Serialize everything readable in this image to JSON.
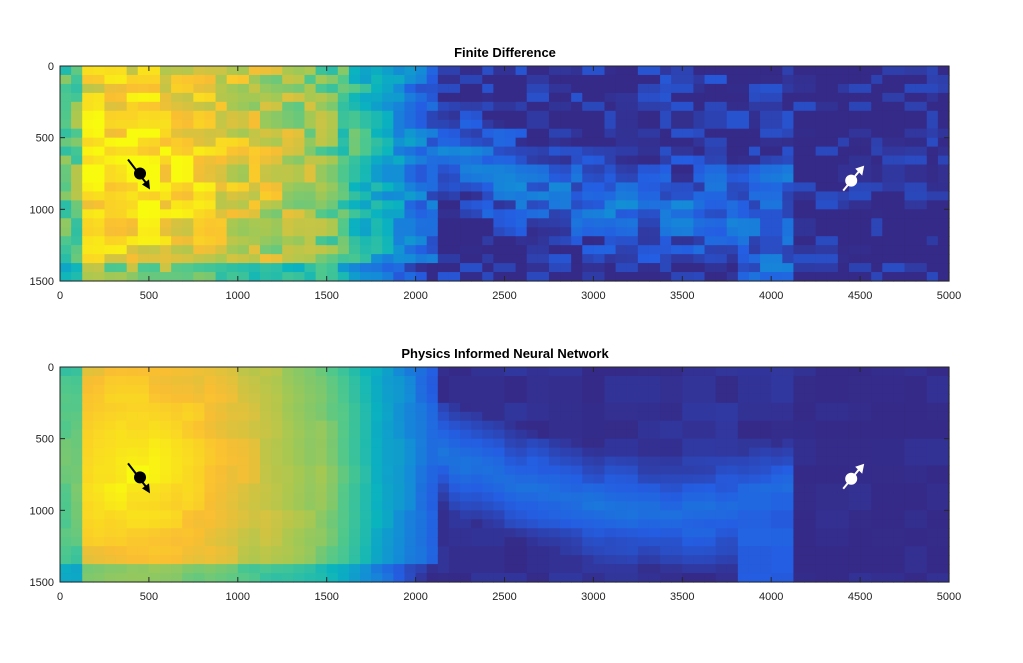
{
  "chart_data": [
    {
      "type": "heatmap",
      "title": "Finite Difference",
      "xlabel": "",
      "ylabel": "",
      "xlim": [
        0,
        5000
      ],
      "ylim": [
        0,
        1500
      ],
      "y_reversed": true,
      "x_ticks": [
        0,
        500,
        1000,
        1500,
        2000,
        2500,
        3000,
        3500,
        4000,
        4500,
        5000
      ],
      "y_ticks": [
        0,
        500,
        1000,
        1500
      ],
      "colormap": "parula",
      "grid": false,
      "markers": [
        {
          "name": "source",
          "x": 450,
          "y": 750,
          "color": "#000000",
          "arrow": "down-right"
        },
        {
          "name": "receiver",
          "x": 4450,
          "y": 800,
          "color": "#ffffff",
          "arrow": "up-right"
        }
      ]
    },
    {
      "type": "heatmap",
      "title": "Physics Informed Neural Network",
      "xlabel": "",
      "ylabel": "",
      "xlim": [
        0,
        5000
      ],
      "ylim": [
        0,
        1500
      ],
      "y_reversed": true,
      "x_ticks": [
        0,
        500,
        1000,
        1500,
        2000,
        2500,
        3000,
        3500,
        4000,
        4500,
        5000
      ],
      "y_ticks": [
        0,
        500,
        1000,
        1500
      ],
      "colormap": "parula",
      "grid": false,
      "markers": [
        {
          "name": "source",
          "x": 450,
          "y": 770,
          "color": "#000000",
          "arrow": "down-right"
        },
        {
          "name": "receiver",
          "x": 4450,
          "y": 780,
          "color": "#ffffff",
          "arrow": "up-right"
        }
      ]
    }
  ]
}
